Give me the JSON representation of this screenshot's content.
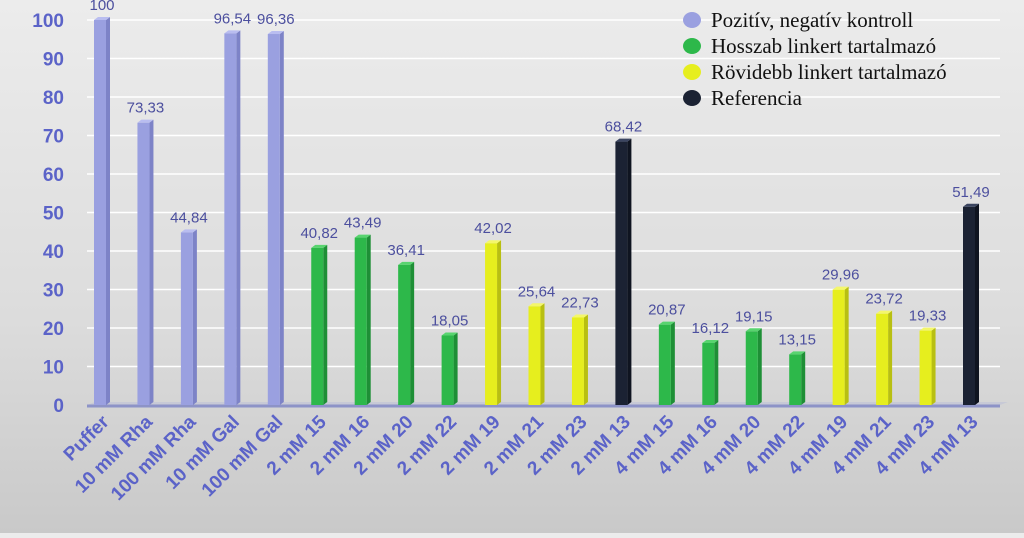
{
  "chart_data": {
    "type": "bar",
    "title": "",
    "xlabel": "",
    "ylabel": "",
    "ylim": [
      0,
      100
    ],
    "yticks": [
      0,
      10,
      20,
      30,
      40,
      50,
      60,
      70,
      80,
      90,
      100
    ],
    "grid": true,
    "legend_position": "top-right",
    "legend": [
      {
        "label": "Pozitív, negatív kontroll",
        "color": "#9aa0e0"
      },
      {
        "label": "Hosszab linkert tartalmazó",
        "color": "#2db84a"
      },
      {
        "label": "Rövidebb linkert tartalmazó",
        "color": "#e6ee1e"
      },
      {
        "label": "Referencia",
        "color": "#1b2233"
      }
    ],
    "categories": [
      "Puffer",
      "10 mM Rha",
      "100 mM Rha",
      "10 mM Gal",
      "100 mM Gal",
      "2 mM 15",
      "2 mM 16",
      "2 mM 20",
      "2 mM 22",
      "2 mM 19",
      "2 mM 21",
      "2 mM 23",
      "2 mM 13",
      "4 mM 15",
      "4 mM 16",
      "4 mM 20",
      "4 mM 22",
      "4 mM 19",
      "4 mM 21",
      "4 mM 23",
      "4 mM 13"
    ],
    "values": [
      100,
      73.33,
      44.84,
      96.54,
      96.36,
      40.82,
      43.49,
      36.41,
      18.05,
      42.02,
      25.64,
      22.73,
      68.42,
      20.87,
      16.12,
      19.15,
      13.15,
      29.96,
      23.72,
      19.33,
      51.49
    ],
    "value_labels": [
      "100",
      "73,33",
      "44,84",
      "96,54",
      "96,36",
      "40,82",
      "43,49",
      "36,41",
      "18,05",
      "42,02",
      "25,64",
      "22,73",
      "68,42",
      "20,87",
      "16,12",
      "19,15",
      "13,15",
      "29,96",
      "23,72",
      "19,33",
      "51,49"
    ],
    "groups": [
      0,
      0,
      0,
      0,
      0,
      1,
      1,
      1,
      1,
      2,
      2,
      2,
      3,
      1,
      1,
      1,
      1,
      2,
      2,
      2,
      3
    ]
  }
}
